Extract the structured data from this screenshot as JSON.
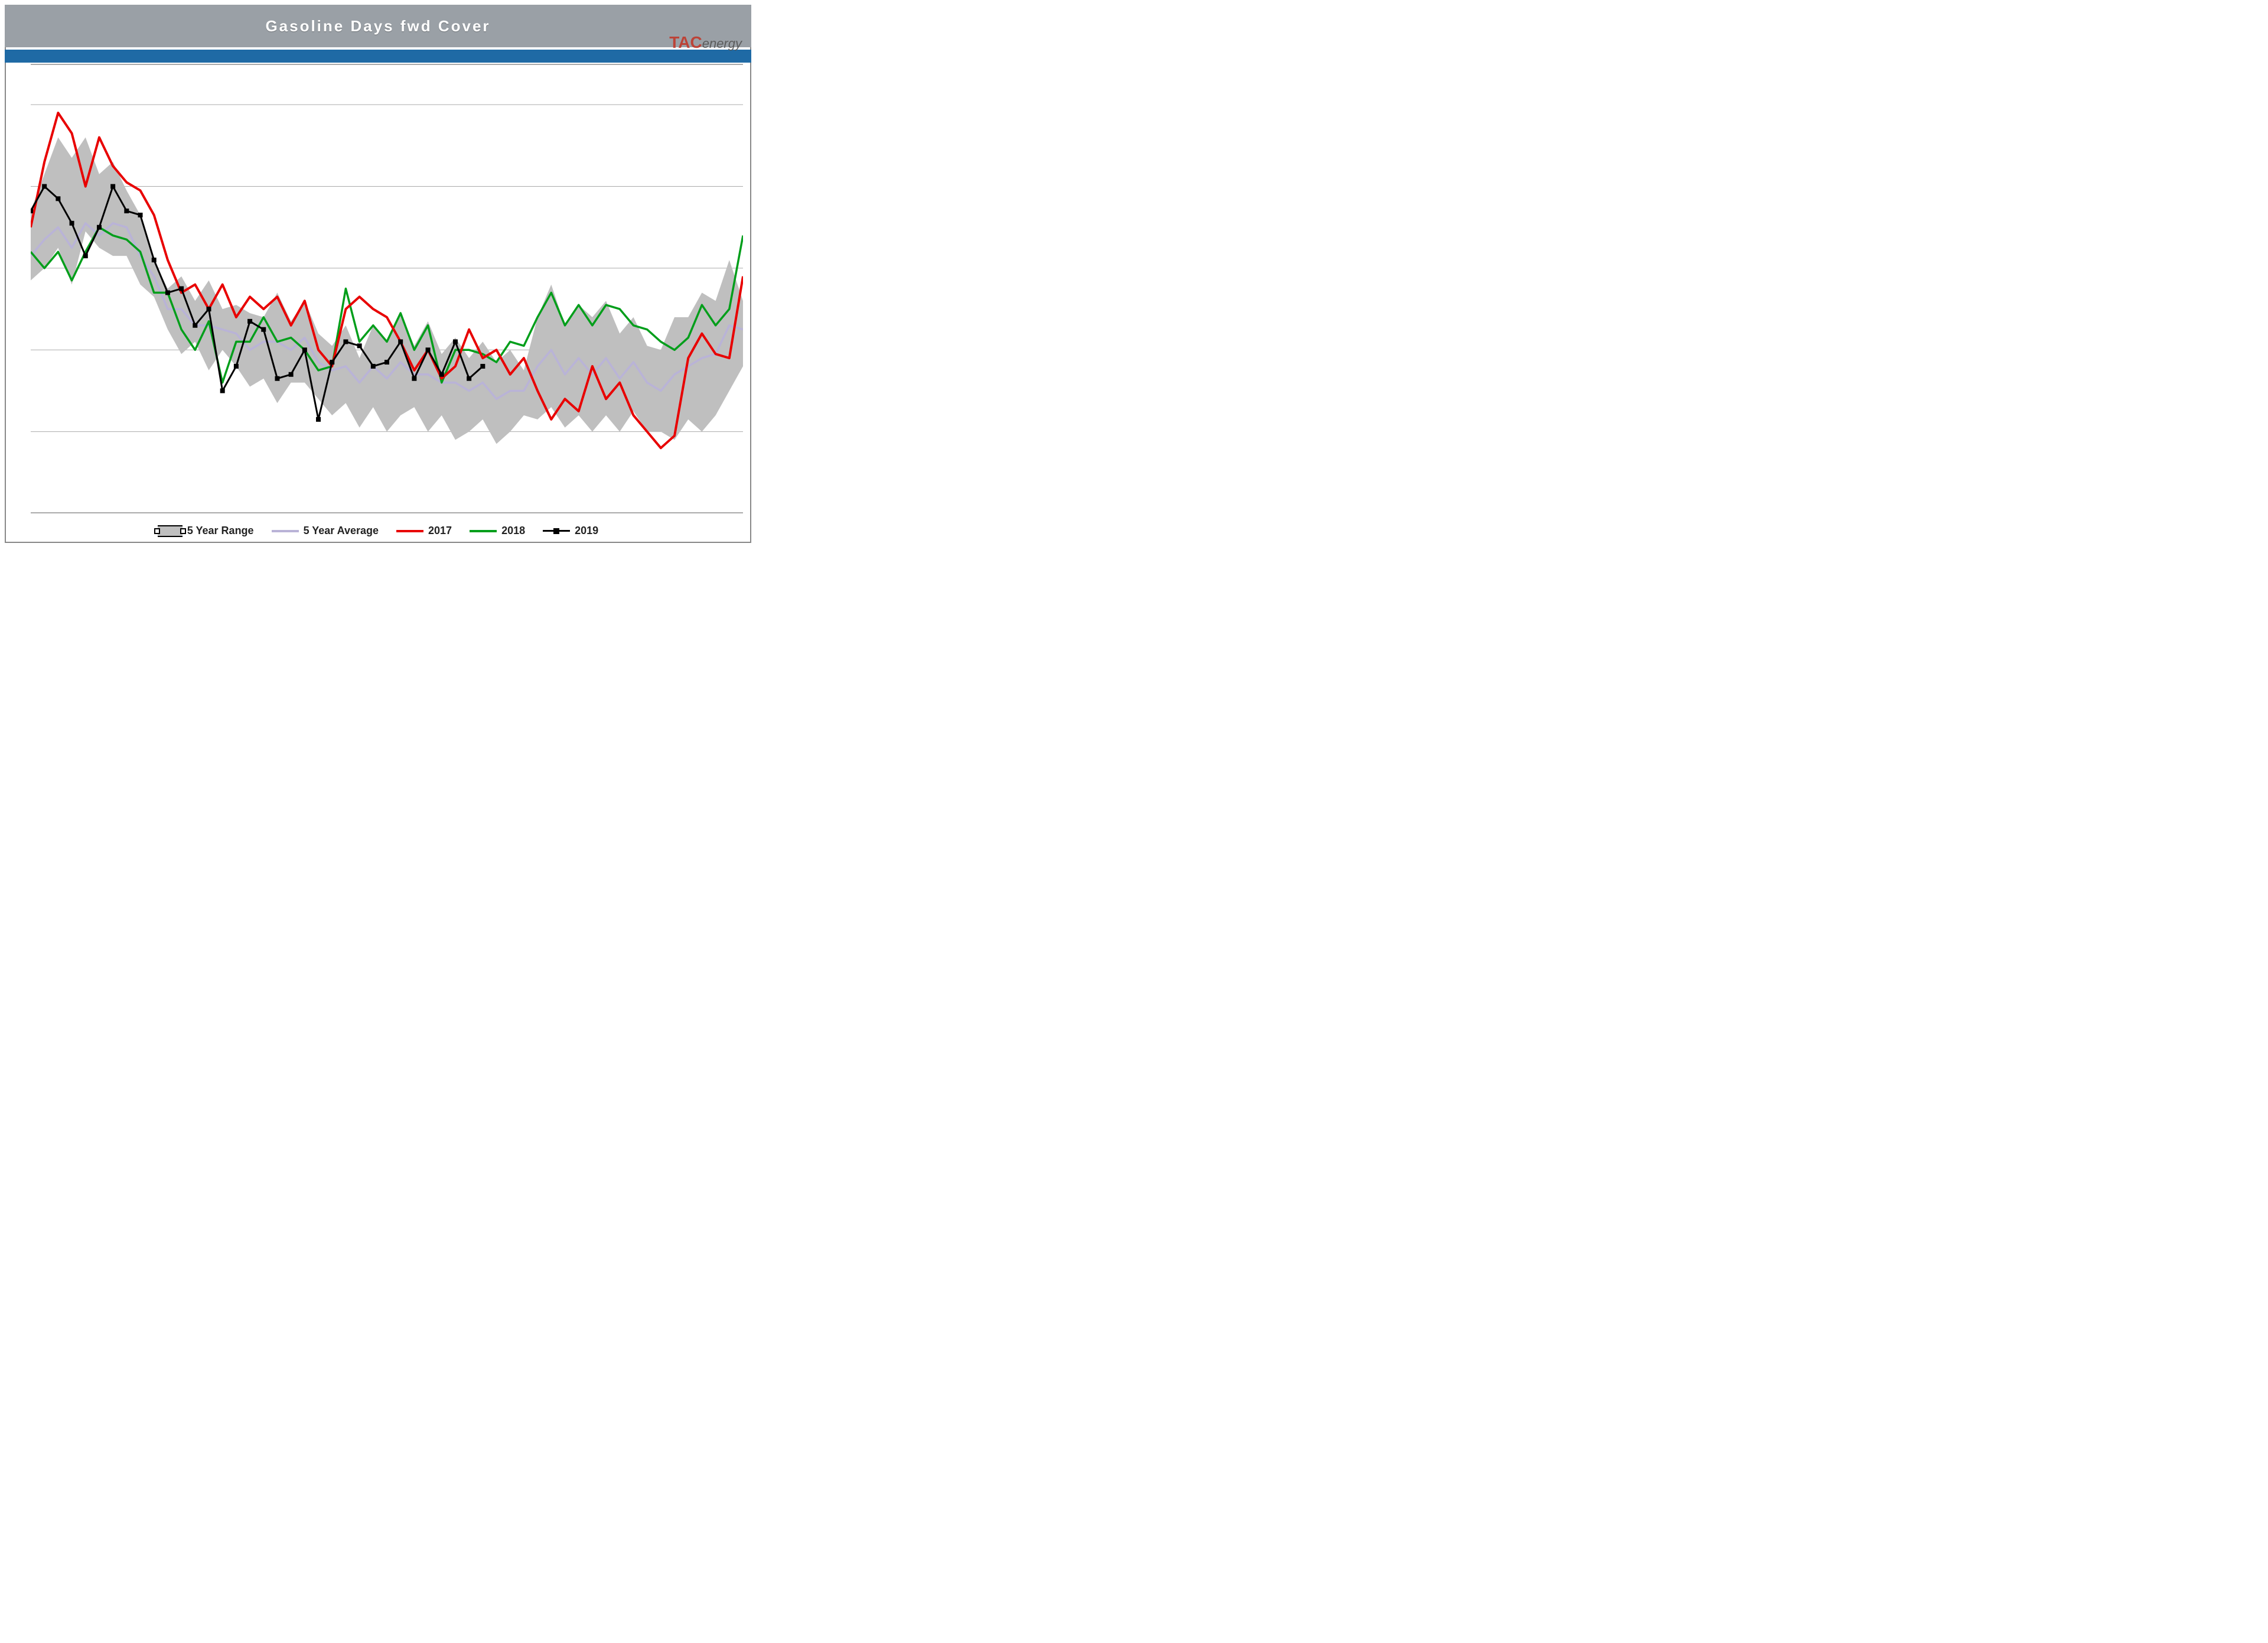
{
  "title": "Gasoline Days fwd Cover",
  "logo": {
    "tac": "TAC",
    "energy": "energy"
  },
  "chart": {
    "type": "line-with-range",
    "background_color": "#ffffff",
    "header_bg": "#9aa0a6",
    "blue_bar_color": "#1f6aa5",
    "title_color": "#ffffff",
    "title_fontsize": 26,
    "title_letter_spacing": 3,
    "grid_color": "#aaaaaa",
    "grid_width": 1,
    "ylim": [
      20,
      31
    ],
    "y_gridlines": [
      22,
      24,
      26,
      28,
      30
    ],
    "y_grid_top_dark": 31,
    "xcount": 53,
    "range": {
      "label": "5 Year Range",
      "fill": "#bfbfbf",
      "stroke": "#000000",
      "stroke_width": 1,
      "upper": [
        27.4,
        28.3,
        29.2,
        28.7,
        29.2,
        28.3,
        28.6,
        27.9,
        27.3,
        26.2,
        25.5,
        25.8,
        25.2,
        25.7,
        25.0,
        25.1,
        24.9,
        24.8,
        25.4,
        24.7,
        25.2,
        24.4,
        24.1,
        24.6,
        23.8,
        24.6,
        24.2,
        24.9,
        24.1,
        24.7,
        23.9,
        24.3,
        23.8,
        24.2,
        23.7,
        24.0,
        23.5,
        24.8,
        25.6,
        24.6,
        25.1,
        24.8,
        25.2,
        24.4,
        24.8,
        24.1,
        24.0,
        24.8,
        24.8,
        25.4,
        25.2,
        26.2,
        25.2
      ],
      "lower": [
        25.7,
        26.0,
        26.5,
        25.6,
        26.9,
        26.5,
        26.3,
        26.3,
        25.6,
        25.3,
        24.5,
        23.9,
        24.2,
        23.5,
        24.0,
        23.6,
        23.1,
        23.3,
        22.7,
        23.2,
        23.2,
        22.8,
        22.4,
        22.7,
        22.1,
        22.6,
        22.0,
        22.4,
        22.6,
        22.0,
        22.4,
        21.8,
        22.0,
        22.3,
        21.7,
        22.0,
        22.4,
        22.3,
        22.6,
        22.1,
        22.4,
        22.0,
        22.4,
        22.0,
        22.5,
        22.0,
        22.0,
        21.8,
        22.3,
        22.0,
        22.4,
        23.0,
        23.6
      ]
    },
    "avg": {
      "label": "5 Year Average",
      "color": "#b9b3d7",
      "width": 3.5,
      "data": [
        26.3,
        26.7,
        27.0,
        26.5,
        27.1,
        26.8,
        27.1,
        27.0,
        26.3,
        25.8,
        25.0,
        25.0,
        24.6,
        24.6,
        24.5,
        24.4,
        24.0,
        24.2,
        24.2,
        24.0,
        24.3,
        23.7,
        23.5,
        23.6,
        23.2,
        23.6,
        23.3,
        23.7,
        23.4,
        23.4,
        23.2,
        23.2,
        23.0,
        23.2,
        22.8,
        23.0,
        23.0,
        23.6,
        24.0,
        23.4,
        23.8,
        23.4,
        23.8,
        23.3,
        23.7,
        23.2,
        23.0,
        23.4,
        23.6,
        23.8,
        23.9,
        24.6,
        24.5
      ]
    },
    "s2017": {
      "label": "2017",
      "color": "#e80000",
      "width": 4,
      "data": [
        27.0,
        28.6,
        29.8,
        29.3,
        28.0,
        29.2,
        28.5,
        28.1,
        27.9,
        27.3,
        26.2,
        25.4,
        25.6,
        25.0,
        25.6,
        24.8,
        25.3,
        25.0,
        25.3,
        24.6,
        25.2,
        24.0,
        23.6,
        25.0,
        25.3,
        25.0,
        24.8,
        24.2,
        23.5,
        24.0,
        23.3,
        23.6,
        24.5,
        23.8,
        24.0,
        23.4,
        23.8,
        23.0,
        22.3,
        22.8,
        22.5,
        23.6,
        22.8,
        23.2,
        22.4,
        22.0,
        21.6,
        21.9,
        23.8,
        24.4,
        23.9,
        23.8,
        25.8
      ]
    },
    "s2018": {
      "label": "2018",
      "color": "#009e1a",
      "width": 3.5,
      "data": [
        26.4,
        26.0,
        26.4,
        25.7,
        26.4,
        27.0,
        26.8,
        26.7,
        26.4,
        25.4,
        25.4,
        24.5,
        24.0,
        24.7,
        23.2,
        24.2,
        24.2,
        24.8,
        24.2,
        24.3,
        24.0,
        23.5,
        23.6,
        25.5,
        24.2,
        24.6,
        24.2,
        24.9,
        24.0,
        24.6,
        23.2,
        24.0,
        24.0,
        23.9,
        23.7,
        24.2,
        24.1,
        24.8,
        25.4,
        24.6,
        25.1,
        24.6,
        25.1,
        25.0,
        24.6,
        24.5,
        24.2,
        24.0,
        24.3,
        25.1,
        24.6,
        25.0,
        26.8
      ]
    },
    "s2019": {
      "label": "2019",
      "color": "#000000",
      "width": 3,
      "marker": "square",
      "marker_size": 8,
      "data": [
        27.4,
        28.0,
        27.7,
        27.1,
        26.3,
        27.0,
        28.0,
        27.4,
        27.3,
        26.2,
        25.4,
        25.5,
        24.6,
        25.0,
        23.0,
        23.6,
        24.7,
        24.5,
        23.3,
        23.4,
        24.0,
        22.3,
        23.7,
        24.2,
        24.1,
        23.6,
        23.7,
        24.2,
        23.3,
        24.0,
        23.4,
        24.2,
        23.3,
        23.6
      ]
    },
    "legend": [
      {
        "key": "range",
        "label": "5 Year Range"
      },
      {
        "key": "avg",
        "label": "5 Year Average"
      },
      {
        "key": "s2017",
        "label": "2017"
      },
      {
        "key": "s2018",
        "label": "2018"
      },
      {
        "key": "s2019",
        "label": "2019"
      }
    ]
  }
}
